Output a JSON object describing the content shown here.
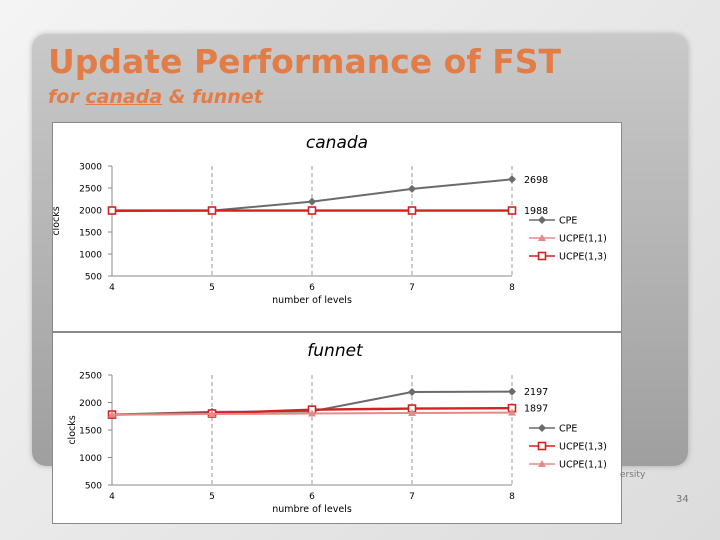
{
  "slide": {
    "title": "Update Performance of FST",
    "subtitle_prefix": "for ",
    "subtitle_underlined": "canada",
    "subtitle_suffix": " & funnet",
    "footer_text": "ersity",
    "page_number": "34"
  },
  "chart_data": [
    {
      "type": "line",
      "title": "canada",
      "xlabel": "number of levels",
      "ylabel": "clocks",
      "categories": [
        "4",
        "5",
        "6",
        "7",
        "8"
      ],
      "yticks": [
        500,
        1000,
        1500,
        2000,
        2500,
        3000
      ],
      "ylim": [
        500,
        3000
      ],
      "grid": "vertical dashed",
      "legend": "right",
      "series": [
        {
          "name": "CPE",
          "values": [
            1975,
            1985,
            2190,
            2480,
            2698
          ],
          "color": "#6b6b6b",
          "marker": "diamond"
        },
        {
          "name": "UCPE(1,1)",
          "values": [
            1988,
            1988,
            1988,
            1988,
            1988
          ],
          "color": "#e58a8a",
          "marker": "triangle"
        },
        {
          "name": "UCPE(1,3)",
          "values": [
            1988,
            1988,
            1988,
            1988,
            1988
          ],
          "color": "#d42020",
          "marker": "square"
        }
      ],
      "annotations": [
        {
          "text": "2698",
          "series": "CPE",
          "category": "8"
        },
        {
          "text": "1988",
          "series": "UCPE(1,3)",
          "category": "8"
        }
      ]
    },
    {
      "type": "line",
      "title": "funnet",
      "xlabel": "numbre of levels",
      "ylabel": "clocks",
      "categories": [
        "4",
        "5",
        "6",
        "7",
        "8"
      ],
      "yticks": [
        500,
        1000,
        1500,
        2000,
        2500
      ],
      "ylim": [
        500,
        2500
      ],
      "grid": "vertical dashed",
      "legend": "right",
      "series": [
        {
          "name": "CPE",
          "values": [
            1780,
            1830,
            1840,
            2190,
            2197
          ],
          "color": "#6b6b6b",
          "marker": "diamond"
        },
        {
          "name": "UCPE(1,3)",
          "values": [
            1780,
            1800,
            1870,
            1890,
            1897
          ],
          "color": "#d42020",
          "marker": "square"
        },
        {
          "name": "UCPE(1,1)",
          "values": [
            1780,
            1790,
            1800,
            1810,
            1815
          ],
          "color": "#e58a8a",
          "marker": "triangle"
        }
      ],
      "annotations": [
        {
          "text": "2197",
          "series": "CPE",
          "category": "8"
        },
        {
          "text": "1897",
          "series": "UCPE(1,3)",
          "category": "8"
        }
      ]
    }
  ]
}
